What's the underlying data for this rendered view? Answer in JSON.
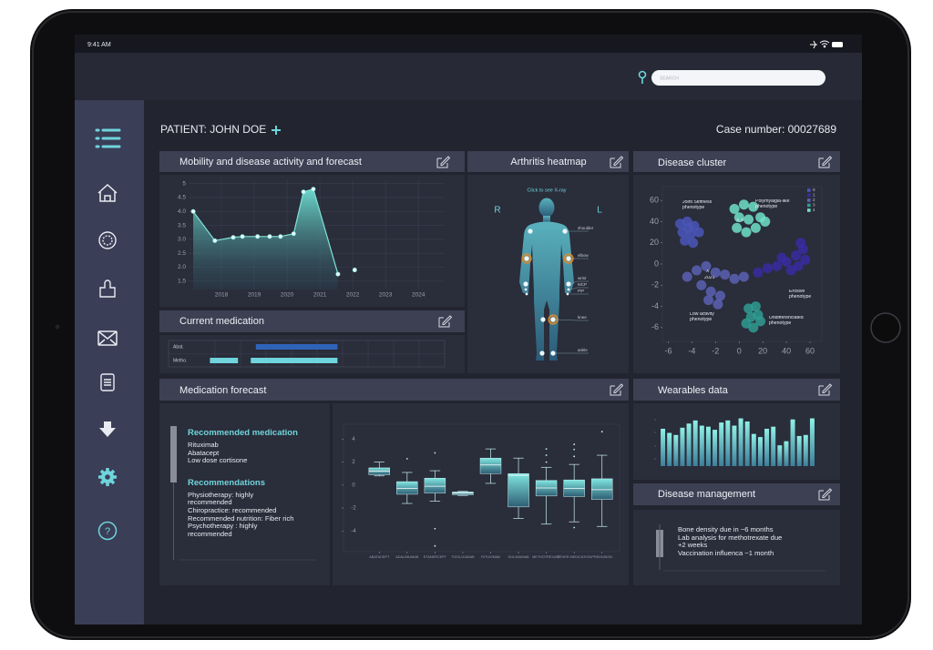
{
  "status_bar": {
    "time": "9:41 AM"
  },
  "search": {
    "placeholder": "SEARCH"
  },
  "patient": {
    "label": "PATIENT: JOHN DOE",
    "case_number": "Case number: 00027689"
  },
  "sidebar": {
    "help": "?"
  },
  "panels": {
    "mobility": "Mobility and disease activity and forecast",
    "heatmap": "Arthritis heatmap",
    "cluster": "Disease cluster",
    "medication": "Current medication",
    "forecast": "Medication forecast",
    "wearables": "Wearables data",
    "management": "Disease management"
  },
  "heatmap": {
    "hint": "Click to see X-ray",
    "right": "R",
    "left": "L",
    "joints": [
      {
        "label": "shoulder",
        "right": false,
        "left": false
      },
      {
        "label": "elbow",
        "right": true,
        "left": true
      },
      {
        "label": "wrist",
        "right": false,
        "left": false
      },
      {
        "label": "MCP",
        "right": false,
        "left": false
      },
      {
        "label": "PIP",
        "right": false,
        "left": false
      },
      {
        "label": "knee",
        "right": false,
        "left": true
      },
      {
        "label": "ankle",
        "right": false,
        "left": false
      }
    ]
  },
  "forecast": {
    "recommended_title": "Recommended medication",
    "recommended": [
      "Rituximab",
      "Abatacept",
      "Low dose cortisone"
    ],
    "recommendations_title": "Recommendations",
    "recommendations": [
      "Physiotherapy: highly recommended",
      "Chiropractice:  recommended",
      "Recommended nutrition:  Fiber rich",
      "Psychotherapy : highly recommended"
    ]
  },
  "management": {
    "items": [
      "Bone density due in  ~6 months",
      "Lab analysis for methotrexate due +2 weeks",
      "Vaccination influenca ~1 month"
    ]
  },
  "chart_data": [
    {
      "type": "area",
      "xlim": [
        2017,
        2024.8
      ],
      "xticks": [
        2018,
        2019,
        2020,
        2021,
        2022,
        2023,
        2024
      ],
      "ylim": [
        1.2,
        5.15
      ],
      "yticks": [
        5,
        4.5,
        {
          "value": 4,
          "label": "4.0"
        },
        3.5,
        {
          "value": 3,
          "label": "3.0"
        },
        2.5,
        {
          "value": 2,
          "label": "2.0"
        },
        1.5
      ],
      "grid": true,
      "series": [
        {
          "color": "#7fe3d6",
          "fill": true,
          "x": [
            2017.14,
            2017.8,
            2018.36,
            2018.64,
            2019.1,
            2019.47,
            2019.8,
            2020.2,
            2020.5,
            2020.8,
            2021.55
          ],
          "values": [
            4.0,
            2.95,
            3.07,
            3.1,
            3.1,
            3.1,
            3.1,
            3.2,
            4.7,
            4.8,
            1.75
          ]
        },
        {
          "color": "#7fe3d6",
          "fill": false,
          "x": [
            2022.06
          ],
          "values": [
            1.9
          ]
        }
      ]
    },
    {
      "type": "gantt",
      "xlim": [
        0,
        100
      ],
      "series": [
        {
          "name": "Abat.",
          "color": "#2f63b8",
          "ranges": [
            [
              26,
              58
            ]
          ]
        },
        {
          "name": "Metho.",
          "color": "#6fd4dc",
          "ranges": [
            [
              8,
              19
            ],
            [
              24,
              58
            ]
          ]
        }
      ]
    },
    {
      "type": "scatter",
      "xlim": [
        -0.25,
        6.5
      ],
      "ylim": [
        -0.65,
        6.65
      ],
      "xticks": [
        {
          "value": 0,
          "label": "-6"
        },
        {
          "value": 1,
          "label": "-4"
        },
        {
          "value": 2,
          "label": "-2"
        },
        {
          "value": 3,
          "label": "0"
        },
        {
          "value": 4,
          "label": "20"
        },
        {
          "value": 5,
          "label": "40"
        },
        {
          "value": 6,
          "label": "60"
        }
      ],
      "yticks": [
        {
          "value": 6,
          "label": "60"
        },
        {
          "value": 5,
          "label": "40"
        },
        {
          "value": 4,
          "label": "20"
        },
        {
          "value": 3,
          "label": "0"
        },
        {
          "value": 2,
          "label": "-2"
        },
        {
          "value": 1,
          "label": "-4"
        },
        {
          "value": 0,
          "label": "-6"
        }
      ],
      "legend": "upper right",
      "annotations": [
        "Joint Stiffness phenotype",
        "Polymyalgia-like phenotype",
        "Erosive phenotype",
        "Low activity phenotype",
        "Undifferenciated phenotype",
        "X X",
        "X",
        "2021"
      ],
      "series": [
        {
          "name": "0",
          "color": "#4a56b8",
          "x": [
            0.5,
            0.8,
            1.1,
            0.6,
            0.95,
            1.3,
            0.7,
            1.05,
            0.85
          ],
          "values": [
            4.9,
            5.0,
            4.8,
            4.5,
            4.4,
            4.5,
            4.1,
            4.0,
            4.7
          ]
        },
        {
          "name": "1",
          "color": "#3a2ba2",
          "x": [
            3.8,
            4.2,
            4.6,
            5.0,
            5.4,
            5.7,
            5.6,
            5.8,
            5.2,
            4.8,
            5.5
          ],
          "values": [
            2.6,
            2.8,
            2.9,
            3.1,
            3.4,
            3.7,
            4.0,
            3.2,
            2.7,
            3.3,
            2.9
          ]
        },
        {
          "name": "2",
          "color": "#5a62b4",
          "x": [
            0.8,
            1.2,
            1.6,
            2.0,
            2.4,
            2.8,
            3.2,
            1.4,
            1.8,
            2.2,
            2.1,
            1.7
          ],
          "values": [
            2.4,
            2.7,
            2.9,
            2.6,
            2.5,
            2.3,
            2.4,
            2.0,
            1.7,
            1.5,
            1.1,
            1.3
          ]
        },
        {
          "name": "3",
          "color": "#2f9c92",
          "x": [
            3.4,
            3.7,
            3.5,
            3.8,
            3.3,
            3.6,
            3.9
          ],
          "values": [
            0.9,
            1.0,
            0.5,
            0.6,
            0.2,
            0.0,
            0.3
          ]
        },
        {
          "name": "4",
          "color": "#6ee0c8",
          "x": [
            2.8,
            3.2,
            3.6,
            3.0,
            3.4,
            3.9,
            2.9,
            3.3,
            3.7,
            4.1
          ],
          "values": [
            5.6,
            5.8,
            5.7,
            5.2,
            5.1,
            5.2,
            4.7,
            4.5,
            4.7,
            5.0
          ]
        }
      ]
    },
    {
      "type": "box",
      "color": "#6fd4dc",
      "ylim": [
        -5.8,
        5.3
      ],
      "yticks": [
        4,
        2,
        0,
        -2,
        -4
      ],
      "categories": [
        "ABATACEPT",
        "ADALIMUMAB",
        "ETANERCEPT",
        "TOCILIZUMAB",
        "RITUXIMAB",
        "GOLIMUMAB",
        "METHOTREXATE",
        "OTHER MEDICATION",
        "PREDNISON"
      ],
      "boxes": [
        {
          "low": 0.8,
          "q1": 0.9,
          "median": 1.2,
          "q3": 1.5,
          "high": 2.0,
          "outliers": []
        },
        {
          "low": -1.6,
          "q1": -0.8,
          "median": -0.3,
          "q3": 0.3,
          "high": 1.1,
          "outliers": [
            2.3
          ]
        },
        {
          "low": -1.4,
          "q1": -0.7,
          "median": -0.1,
          "q3": 0.6,
          "high": 1.25,
          "outliers": [
            2.8,
            -3.8,
            -5.3
          ]
        },
        {
          "low": -0.9,
          "q1": -0.85,
          "median": -0.7,
          "q3": -0.6,
          "high": -0.55,
          "outliers": []
        },
        {
          "low": 0.15,
          "q1": 1.0,
          "median": 1.75,
          "q3": 2.35,
          "high": 3.15,
          "outliers": []
        },
        {
          "low": -2.9,
          "q1": -1.9,
          "median": 0.85,
          "q3": 1.0,
          "high": 2.35,
          "outliers": []
        },
        {
          "low": -3.4,
          "q1": -0.95,
          "median": -0.25,
          "q3": 0.4,
          "high": 1.55,
          "outliers": [
            3.15,
            2.6,
            2.0
          ]
        },
        {
          "low": -3.2,
          "q1": -1.0,
          "median": -0.3,
          "q3": 0.45,
          "high": 1.8,
          "outliers": [
            3.55,
            3.1,
            2.5,
            -3.7
          ]
        },
        {
          "low": -3.6,
          "q1": -1.25,
          "median": -0.4,
          "q3": 0.55,
          "high": 2.6,
          "outliers": [
            4.65
          ]
        }
      ]
    },
    {
      "type": "bar",
      "color": "#6fd4dc",
      "ylim": [
        0,
        50
      ],
      "values": [
        36,
        32,
        30,
        37,
        41,
        44,
        39,
        38,
        35,
        42,
        44,
        39,
        46,
        43,
        31,
        28,
        36,
        38,
        20,
        24,
        45,
        29,
        30,
        46
      ]
    }
  ]
}
